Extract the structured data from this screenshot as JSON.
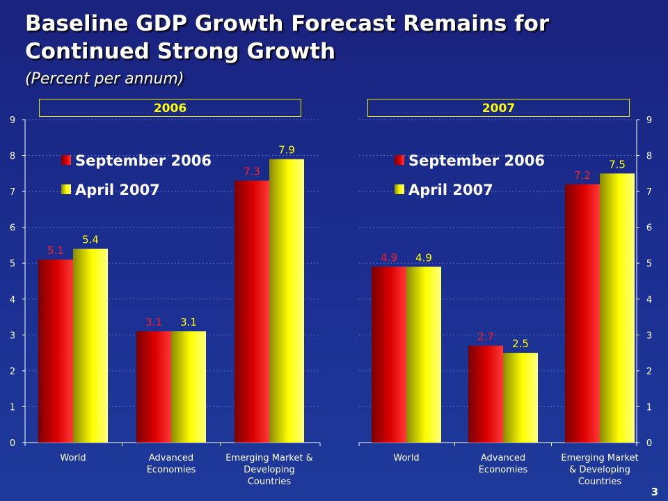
{
  "title_line1": "Baseline GDP Growth Forecast Remains for",
  "title_line2": "Continued Strong Growth",
  "subtitle": "(Percent per annum)",
  "page_number": "3",
  "colors": {
    "background": "#1a237e",
    "series_sept": "#dd0000",
    "series_april": "#ffff00",
    "axis": "#ffffff",
    "year_box_border": "#e8e800"
  },
  "chart_data": [
    {
      "type": "bar",
      "panel_label": "2006",
      "categories": [
        "World",
        "Advanced Economies",
        "Emerging Market & Developing Countries"
      ],
      "category_lines": [
        [
          "World"
        ],
        [
          "Advanced",
          "Economies"
        ],
        [
          "Emerging Market &",
          "Developing",
          "Countries"
        ]
      ],
      "series": [
        {
          "name": "September 2006",
          "values": [
            5.1,
            3.1,
            7.3
          ]
        },
        {
          "name": "April 2007",
          "values": [
            5.4,
            3.1,
            7.9
          ]
        }
      ],
      "ylim": [
        0,
        9
      ],
      "yticks": [
        0,
        1,
        2,
        3,
        4,
        5,
        6,
        7,
        8,
        9
      ],
      "axis_side": "left",
      "legend": "top-left",
      "grid": true
    },
    {
      "type": "bar",
      "panel_label": "2007",
      "categories": [
        "World",
        "Advanced Economies",
        "Emerging Market & Developing Countries"
      ],
      "category_lines": [
        [
          "World"
        ],
        [
          "Advanced",
          "Economies"
        ],
        [
          "Emerging Market",
          "& Developing",
          "Countries"
        ]
      ],
      "series": [
        {
          "name": "September 2006",
          "values": [
            4.9,
            2.7,
            7.2
          ]
        },
        {
          "name": "April 2007",
          "values": [
            4.9,
            2.5,
            7.5
          ]
        }
      ],
      "ylim": [
        0,
        9
      ],
      "yticks": [
        0,
        1,
        2,
        3,
        4,
        5,
        6,
        7,
        8,
        9
      ],
      "axis_side": "right",
      "legend": "top-left",
      "grid": true
    }
  ]
}
